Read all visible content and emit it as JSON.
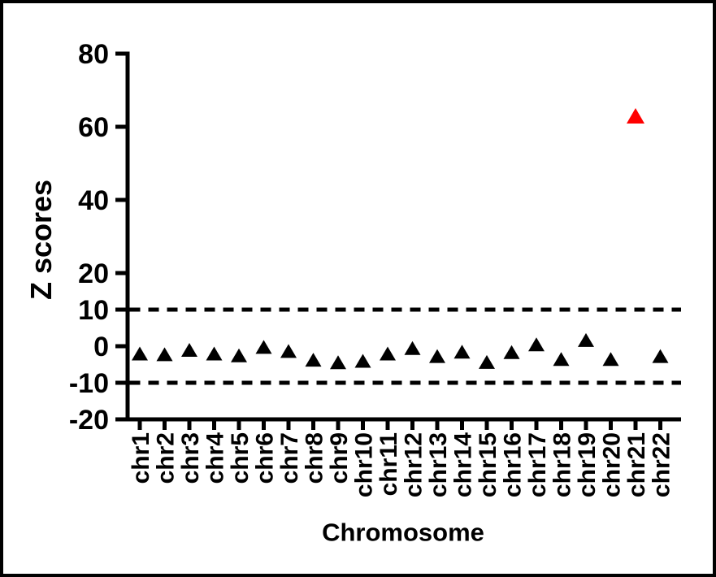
{
  "figure": {
    "background_color": "#ffffff",
    "frame_color": "#000000"
  },
  "chart_data": {
    "type": "scatter",
    "marker_shape": "triangle-up",
    "title": "",
    "xlabel": "Chromosome",
    "ylabel": "Z scores",
    "categories": [
      "chr1",
      "chr2",
      "chr3",
      "chr4",
      "chr5",
      "chr6",
      "chr7",
      "chr8",
      "chr9",
      "chr10",
      "chr11",
      "chr12",
      "chr13",
      "chr14",
      "chr15",
      "chr16",
      "chr17",
      "chr18",
      "chr19",
      "chr20",
      "chr21",
      "chr22"
    ],
    "values": [
      -2,
      -2.2,
      -1,
      -2,
      -2.5,
      -0.2,
      -1.3,
      -3.7,
      -4.4,
      -4,
      -2,
      -0.5,
      -2.7,
      -1.5,
      -4.3,
      -1.6,
      0.5,
      -3.5,
      1.7,
      -3.5,
      63,
      -2.7
    ],
    "default_marker_color": "#000000",
    "highlight_point": {
      "category": "chr21",
      "value": 63,
      "color": "#ff0000"
    },
    "ylim": [
      -20,
      80
    ],
    "y_ticks": [
      -20,
      -10,
      0,
      10,
      20,
      40,
      60,
      80
    ],
    "y_tick_labels": [
      "-20",
      "-10",
      "0",
      "10",
      "20",
      "40",
      "60",
      "80"
    ],
    "threshold_lines": [
      {
        "y": 10,
        "style": "dashed",
        "color": "#000000"
      },
      {
        "y": -10,
        "style": "dashed",
        "color": "#000000"
      }
    ],
    "grid": false,
    "legend": null,
    "axis_color": "#000000"
  }
}
